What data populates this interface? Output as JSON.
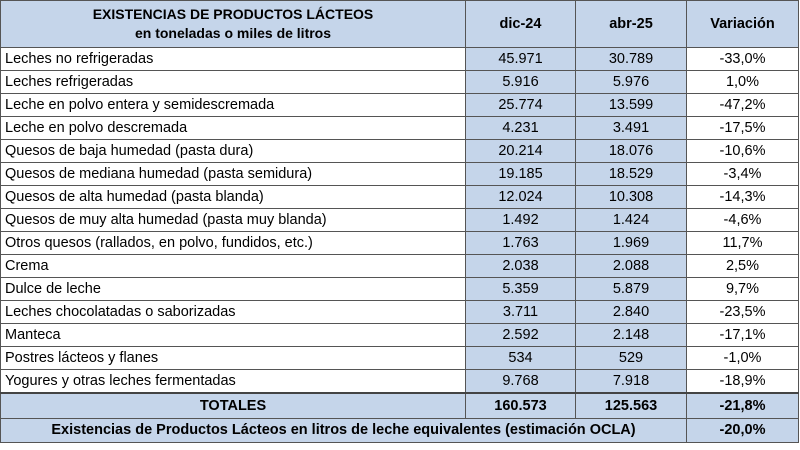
{
  "header": {
    "title_line1": "EXISTENCIAS DE PRODUCTOS LÁCTEOS",
    "title_line2": "en toneladas o miles de litros",
    "col_dic24": "dic-24",
    "col_abr25": "abr-25",
    "col_variacion": "Variación"
  },
  "rows": [
    {
      "name": "Leches no refrigeradas",
      "dic24": "45.971",
      "abr25": "30.789",
      "var": "-33,0%"
    },
    {
      "name": "Leches refrigeradas",
      "dic24": "5.916",
      "abr25": "5.976",
      "var": "1,0%"
    },
    {
      "name": "Leche en polvo entera y semidescremada",
      "dic24": "25.774",
      "abr25": "13.599",
      "var": "-47,2%"
    },
    {
      "name": "Leche en polvo descremada",
      "dic24": "4.231",
      "abr25": "3.491",
      "var": "-17,5%"
    },
    {
      "name": "Quesos de baja humedad (pasta dura)",
      "dic24": "20.214",
      "abr25": "18.076",
      "var": "-10,6%"
    },
    {
      "name": "Quesos de mediana humedad (pasta semidura)",
      "dic24": "19.185",
      "abr25": "18.529",
      "var": "-3,4%"
    },
    {
      "name": "Quesos de alta humedad (pasta blanda)",
      "dic24": "12.024",
      "abr25": "10.308",
      "var": "-14,3%"
    },
    {
      "name": "Quesos de muy alta humedad (pasta muy blanda)",
      "dic24": "1.492",
      "abr25": "1.424",
      "var": "-4,6%"
    },
    {
      "name": "Otros quesos (rallados, en polvo, fundidos, etc.)",
      "dic24": "1.763",
      "abr25": "1.969",
      "var": "11,7%"
    },
    {
      "name": "Crema",
      "dic24": "2.038",
      "abr25": "2.088",
      "var": "2,5%"
    },
    {
      "name": "Dulce de leche",
      "dic24": "5.359",
      "abr25": "5.879",
      "var": "9,7%"
    },
    {
      "name": "Leches chocolatadas o saborizadas",
      "dic24": "3.711",
      "abr25": "2.840",
      "var": "-23,5%"
    },
    {
      "name": "Manteca",
      "dic24": "2.592",
      "abr25": "2.148",
      "var": "-17,1%"
    },
    {
      "name": "Postres lácteos y flanes",
      "dic24": "534",
      "abr25": "529",
      "var": "-1,0%"
    },
    {
      "name": "Yogures y otras leches fermentadas",
      "dic24": "9.768",
      "abr25": "7.918",
      "var": "-18,9%"
    }
  ],
  "totals": {
    "label": "TOTALES",
    "dic24": "160.573",
    "abr25": "125.563",
    "var": "-21,8%"
  },
  "equivalent": {
    "label": "Existencias de Productos Lácteos en litros de leche equivalentes (estimación OCLA)",
    "var": "-20,0%"
  }
}
